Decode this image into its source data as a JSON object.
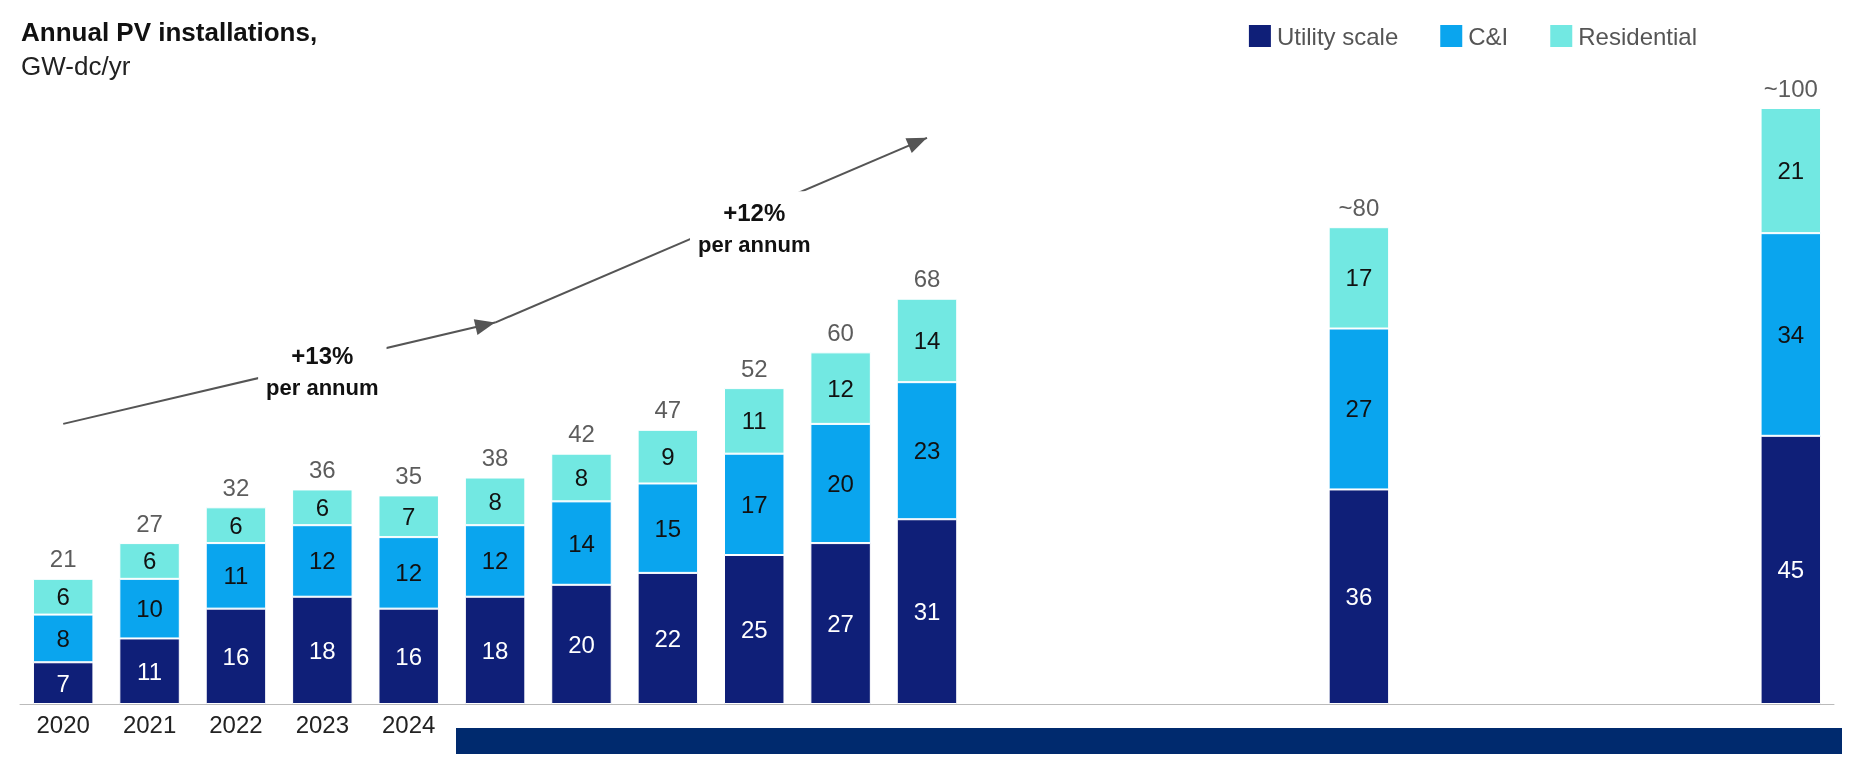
{
  "chart_data": {
    "type": "bar",
    "title": "Annual PV installations,",
    "subtitle": "GW-dc/yr",
    "categories": [
      "2020",
      "2021",
      "2022",
      "2023",
      "2024",
      null,
      null,
      null,
      null,
      null,
      null,
      null,
      null,
      null,
      null,
      null,
      null,
      null,
      null,
      null,
      null
    ],
    "stacked": true,
    "data_labels": true,
    "legend": "top right",
    "series": [
      {
        "name": "Utility scale",
        "color": "#0f1f78",
        "values": [
          7,
          11,
          16,
          18,
          16,
          18,
          20,
          22,
          25,
          27,
          31,
          null,
          null,
          null,
          null,
          36,
          null,
          null,
          null,
          null,
          45
        ]
      },
      {
        "name": "C&I",
        "color": "#0aa5ee",
        "values": [
          8,
          10,
          11,
          12,
          12,
          12,
          14,
          15,
          17,
          20,
          23,
          null,
          null,
          null,
          null,
          27,
          null,
          null,
          null,
          null,
          34
        ]
      },
      {
        "name": "Residential",
        "color": "#72e8e2",
        "values": [
          6,
          6,
          6,
          6,
          7,
          8,
          8,
          9,
          11,
          12,
          14,
          null,
          null,
          null,
          null,
          17,
          null,
          null,
          null,
          null,
          21
        ]
      }
    ],
    "totals": [
      "21",
      "27",
      "32",
      "36",
      "35",
      "38",
      "42",
      "47",
      "52",
      "60",
      "68",
      null,
      null,
      null,
      null,
      "~80",
      null,
      null,
      null,
      null,
      "~100"
    ],
    "annotations": [
      "+13%\nper annum",
      "+12%\nper annum"
    ]
  }
}
